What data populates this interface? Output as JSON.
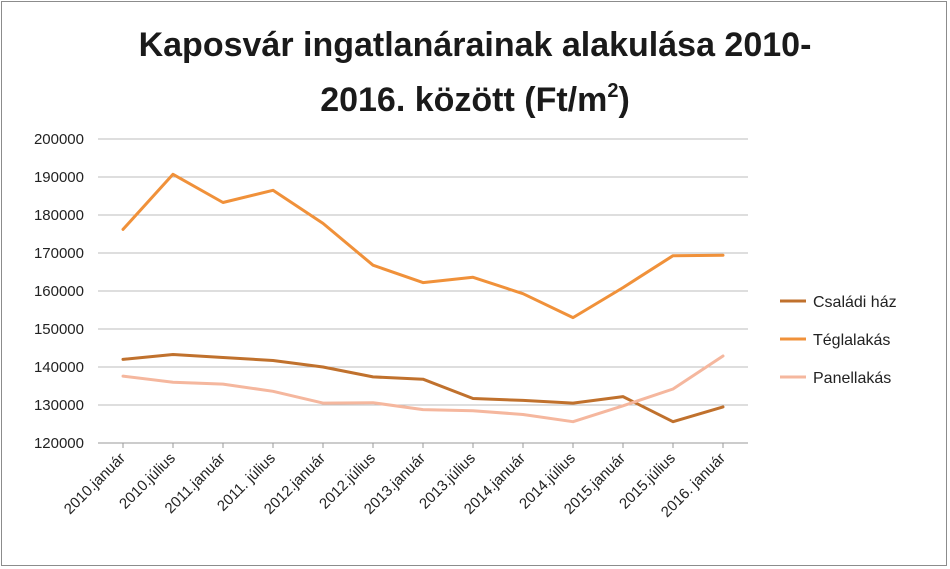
{
  "chart_data": {
    "type": "line",
    "title_line1": "Kaposvár ingatlanárainak alakulása 2010-",
    "title_line2_main": "2016. között (Ft/m",
    "title_line2_sup": "2",
    "title_line2_end": ")",
    "categories": [
      "2010.január",
      "2010.július",
      "2011.január",
      "2011. július",
      "2012.január",
      "2012.július",
      "2013.január",
      "2013.július",
      "2014.január",
      "2014.július",
      "2015.január",
      "2015.július",
      "2016. január"
    ],
    "ylim": [
      120000,
      200000
    ],
    "yticks": [
      120000,
      130000,
      140000,
      150000,
      160000,
      170000,
      180000,
      190000,
      200000
    ],
    "ytick_labels": [
      "120000",
      "130000",
      "140000",
      "150000",
      "160000",
      "170000",
      "180000",
      "190000",
      "200000"
    ],
    "grid": true,
    "legend_position": "right",
    "series": [
      {
        "name": "Családi ház",
        "color": "#c0712d",
        "values": [
          142000,
          143300,
          142500,
          141700,
          140000,
          137400,
          136800,
          131700,
          131200,
          130500,
          132200,
          125600,
          129500
        ]
      },
      {
        "name": "Téglalakás",
        "color": "#f0913a",
        "values": [
          176200,
          190700,
          183300,
          186500,
          177800,
          166800,
          162200,
          163600,
          159300,
          153000,
          160900,
          169300,
          169400
        ]
      },
      {
        "name": "Panellakás",
        "color": "#f5b79e",
        "values": [
          137600,
          136000,
          135500,
          133600,
          130500,
          130600,
          128800,
          128500,
          127500,
          125600,
          129800,
          134200,
          142900
        ]
      }
    ]
  }
}
